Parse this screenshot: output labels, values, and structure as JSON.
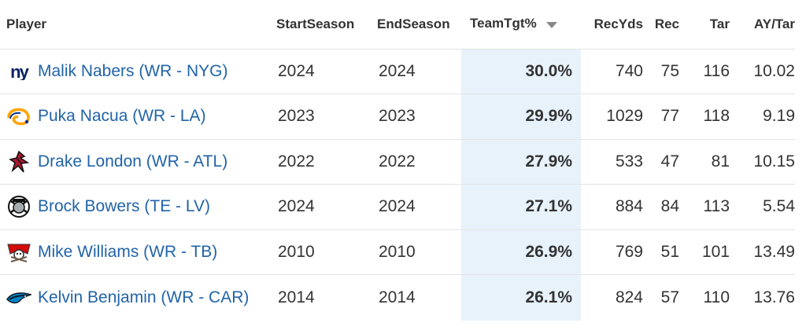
{
  "table": {
    "headers": {
      "player": "Player",
      "start": "StartSeason",
      "end": "EndSeason",
      "teamtgt": "TeamTgt%",
      "recyds": "RecYds",
      "rec": "Rec",
      "tar": "Tar",
      "aytar": "AY/Tar"
    },
    "sort": {
      "column": "TeamTgt%",
      "direction": "descending",
      "icon": "caret-down-icon"
    },
    "rows": [
      {
        "logo": "giants-logo-icon",
        "player": "Malik Nabers (WR - NYG)",
        "start": "2024",
        "end": "2024",
        "teamtgt": "30.0%",
        "recyds": "740",
        "rec": "75",
        "tar": "116",
        "aytar": "10.02"
      },
      {
        "logo": "rams-logo-icon",
        "player": "Puka Nacua (WR - LA)",
        "start": "2023",
        "end": "2023",
        "teamtgt": "29.9%",
        "recyds": "1029",
        "rec": "77",
        "tar": "118",
        "aytar": "9.19"
      },
      {
        "logo": "falcons-logo-icon",
        "player": "Drake London (WR - ATL)",
        "start": "2022",
        "end": "2022",
        "teamtgt": "27.9%",
        "recyds": "533",
        "rec": "47",
        "tar": "81",
        "aytar": "10.15"
      },
      {
        "logo": "raiders-logo-icon",
        "player": "Brock Bowers (TE - LV)",
        "start": "2024",
        "end": "2024",
        "teamtgt": "27.1%",
        "recyds": "884",
        "rec": "84",
        "tar": "113",
        "aytar": "5.54"
      },
      {
        "logo": "buccaneers-logo-icon",
        "player": "Mike Williams (WR - TB)",
        "start": "2010",
        "end": "2010",
        "teamtgt": "26.9%",
        "recyds": "769",
        "rec": "51",
        "tar": "101",
        "aytar": "13.49"
      },
      {
        "logo": "panthers-logo-icon",
        "player": "Kelvin Benjamin (WR - CAR)",
        "start": "2014",
        "end": "2014",
        "teamtgt": "26.1%",
        "recyds": "824",
        "rec": "57",
        "tar": "110",
        "aytar": "13.76"
      }
    ]
  },
  "colors": {
    "link": "#2264a8",
    "sort_highlight": "#e8f2fb",
    "row_border": "#e3e3e3"
  }
}
